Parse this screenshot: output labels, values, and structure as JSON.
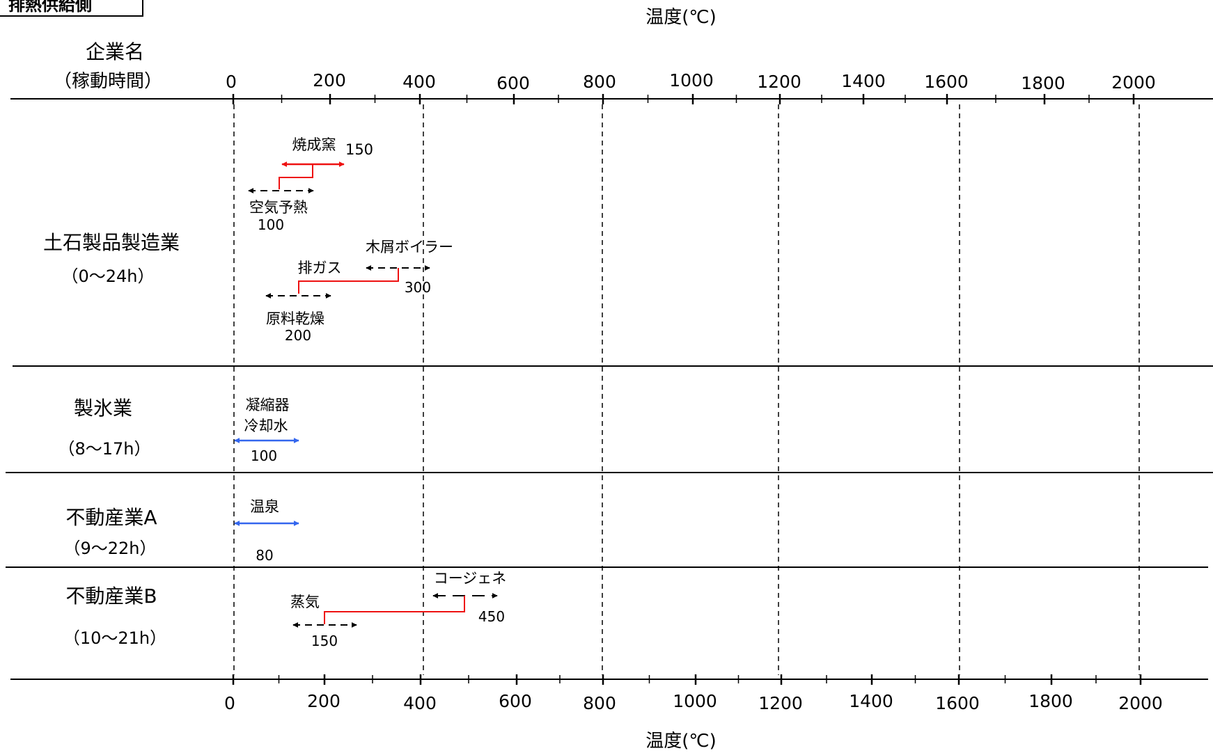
{
  "corner_label": "排熱供給側",
  "axis": {
    "title": "温度(℃)",
    "ticks": [
      0,
      200,
      400,
      600,
      800,
      1000,
      1200,
      1400,
      1600,
      1800,
      2000
    ],
    "range": [
      0,
      2000
    ]
  },
  "header": {
    "company_label": "企業名",
    "hours_label": "（稼動時間）"
  },
  "rows": [
    {
      "name": "土石製品製造業",
      "hours": "（0～24h）"
    },
    {
      "name": "製氷業",
      "hours": "（8～17h）"
    },
    {
      "name": "不動産業A",
      "hours": "（9～22h）"
    },
    {
      "name": "不動産業B",
      "hours": "（10～21h）"
    }
  ],
  "colors": {
    "supply": "#ee1111",
    "cooling": "#3366ee",
    "demand": "#000000",
    "link": "#ee1111"
  },
  "flows": [
    {
      "id": "kiln",
      "label": "焼成窯",
      "value": "150",
      "kind": "supply"
    },
    {
      "id": "air-preheat",
      "label": "空気予熱",
      "value": "100",
      "kind": "demand"
    },
    {
      "id": "wood-boiler",
      "label": "木屑ボイラー",
      "value": "300",
      "kind": "demand"
    },
    {
      "id": "exhaust",
      "label": "排ガス",
      "value": "",
      "kind": "link"
    },
    {
      "id": "drying",
      "label": "原料乾燥",
      "value": "200",
      "kind": "demand"
    },
    {
      "id": "condenser",
      "label_line1": "凝縮器",
      "label_line2": "冷却水",
      "value": "100",
      "kind": "cooling"
    },
    {
      "id": "hot-spring",
      "label": "温泉",
      "value": "80",
      "kind": "cooling"
    },
    {
      "id": "cogen",
      "label": "コージェネ",
      "value": "450",
      "kind": "demand"
    },
    {
      "id": "steam",
      "label": "蒸気",
      "value": "150",
      "kind": "demand"
    }
  ]
}
